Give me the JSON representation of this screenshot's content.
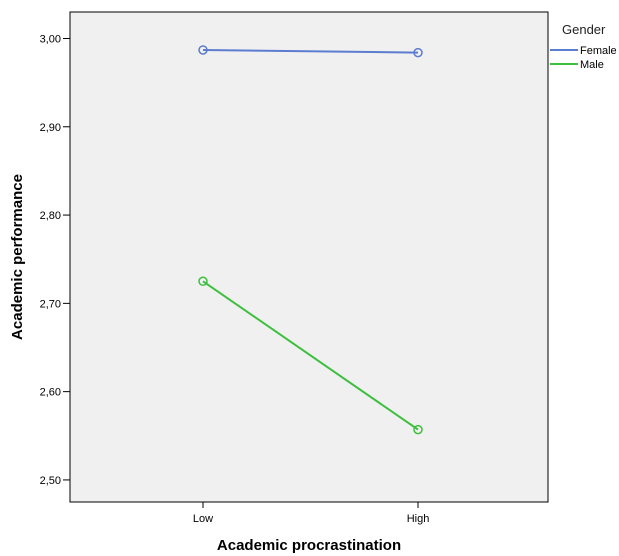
{
  "chart_data": {
    "type": "line",
    "categories": [
      "Low",
      "High"
    ],
    "series": [
      {
        "name": "Female",
        "values": [
          2.987,
          2.984
        ],
        "color": "#5b7ccf"
      },
      {
        "name": "Male",
        "values": [
          2.725,
          2.557
        ],
        "color": "#3cbf3c"
      }
    ],
    "xlabel": "Academic procrastination",
    "ylabel": "Academic performance",
    "ylim": [
      2.475,
      3.03
    ],
    "yticks": [
      2.5,
      2.6,
      2.7,
      2.8,
      2.9,
      3.0
    ],
    "ytick_labels": [
      "2,50",
      "2,60",
      "2,70",
      "2,80",
      "2,90",
      "3,00"
    ],
    "legend_title": "Gender",
    "legend_position": "right",
    "plot_background": "#f0f0f0",
    "grid": false,
    "marker": "open-circle"
  }
}
